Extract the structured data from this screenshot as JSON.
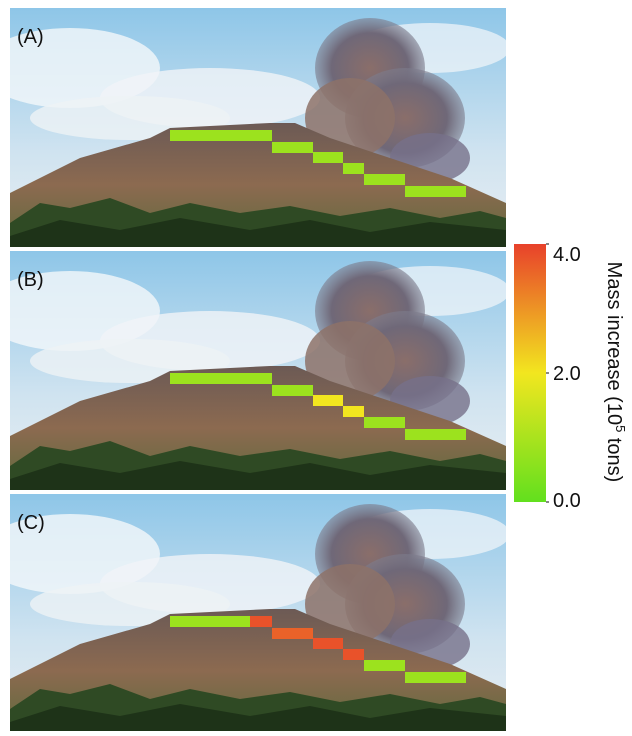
{
  "chart_data": {
    "type": "segment-map",
    "panels": [
      {
        "label": "(A)",
        "values": [
          0.8,
          0.8,
          0.8,
          0.8,
          0.8,
          0.8,
          0.8
        ]
      },
      {
        "label": "(B)",
        "values": [
          0.8,
          0.8,
          0.8,
          2.0,
          2.0,
          0.8,
          0.8
        ]
      },
      {
        "label": "(C)",
        "values": [
          0.8,
          3.8,
          3.6,
          3.8,
          3.8,
          0.8,
          0.8
        ]
      }
    ],
    "colorbar": {
      "label_prefix": "Mass increase (10",
      "label_exponent": "5",
      "label_suffix": " tons)",
      "lim": [
        0,
        4
      ],
      "ticks": [
        {
          "value": 0,
          "label": "0.0"
        },
        {
          "value": 2,
          "label": "2.0"
        },
        {
          "value": 4,
          "label": "4.0"
        }
      ],
      "colormap": [
        "#62e01e",
        "#f2e61f",
        "#e8412b"
      ]
    }
  }
}
